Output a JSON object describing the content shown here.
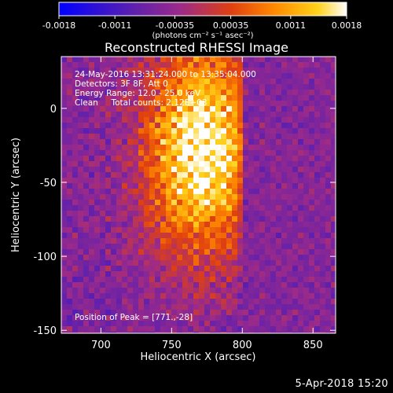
{
  "footer": {
    "date": "5-Apr-2018 15:20"
  },
  "colors": {
    "background": "#000000",
    "text": "#ffffff",
    "colormap": [
      "#0000ff",
      "#5a1fb0",
      "#9b2a8a",
      "#e04010",
      "#ff8a00",
      "#ffd21a",
      "#ffffff"
    ]
  },
  "chart_data": {
    "type": "heatmap",
    "title": "Reconstructed RHESSI Image",
    "xlabel": "Heliocentric X (arcsec)",
    "ylabel": "Heliocentric Y (arcsec)",
    "xlim": [
      672,
      866
    ],
    "ylim": [
      -152,
      35
    ],
    "xticks": [
      700,
      750,
      800,
      850
    ],
    "yticks": [
      0,
      -50,
      -100,
      -150
    ],
    "colorbar": {
      "min": -0.0018,
      "max": 0.0018,
      "ticks": [
        "-0.0018",
        "-0.0011",
        "-0.00035",
        "0.00035",
        "0.0011",
        "0.0018"
      ],
      "unit_label": "(photons cm⁻² s⁻¹ asec⁻²)"
    },
    "info": [
      "24-May-2016 13:31:24.000 to 13:35:04.000",
      "Detectors: 3F 8F, Att 0",
      "Energy Range: 12.0 - 25.0 keV",
      "Clean     Total counts: 2.12E+03"
    ],
    "peak_label": "Position of Peak = [771.,-28]",
    "peak": {
      "x": 771,
      "y": -28
    },
    "grid": false
  }
}
